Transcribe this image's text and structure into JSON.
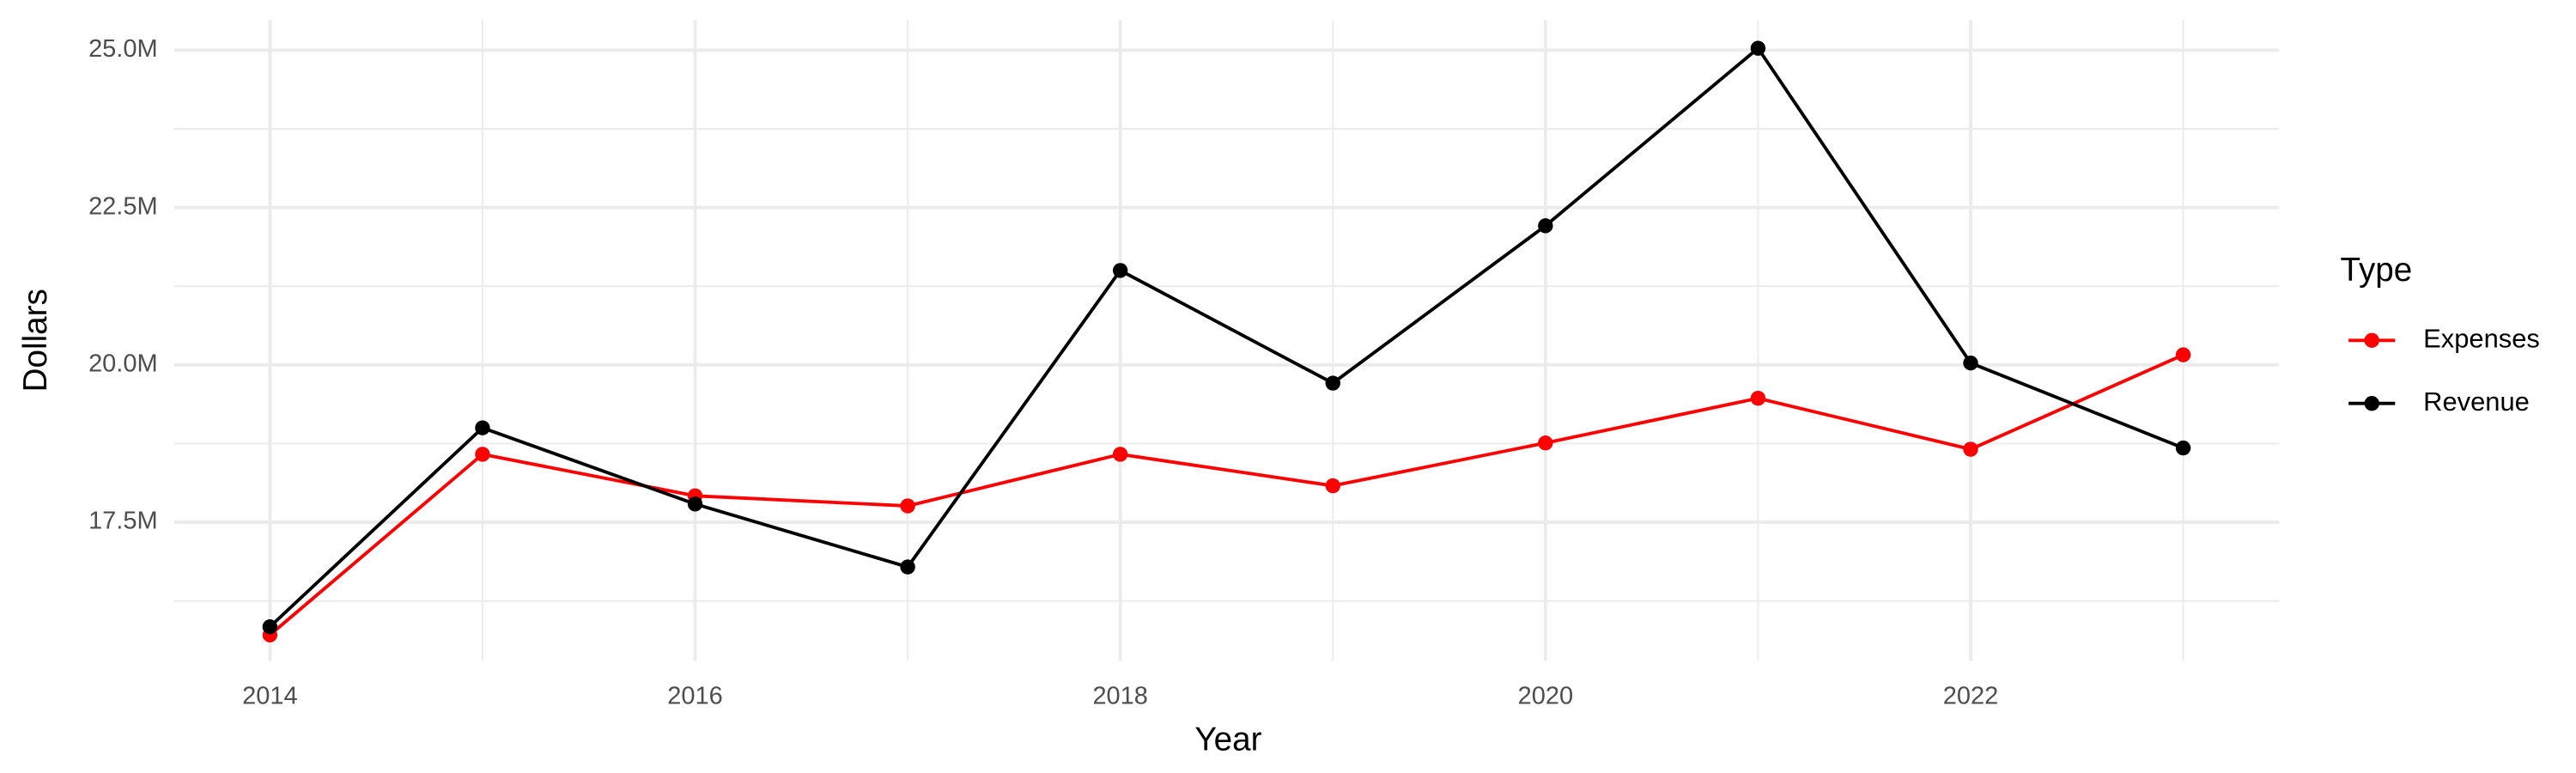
{
  "chart_data": {
    "type": "line",
    "x_label": "Year",
    "y_label": "Dollars",
    "legend_title": "Type",
    "legend_position": "right",
    "x": [
      2014,
      2015,
      2016,
      2017,
      2018,
      2019,
      2020,
      2021,
      2022,
      2023
    ],
    "series": [
      {
        "name": "Expenses",
        "color": "#ff0000",
        "values": [
          15710000,
          18580000,
          17920000,
          17760000,
          18580000,
          18080000,
          18760000,
          19470000,
          18660000,
          20160000
        ]
      },
      {
        "name": "Revenue",
        "color": "#000000",
        "values": [
          15840000,
          19000000,
          17790000,
          16790000,
          21500000,
          19710000,
          22210000,
          25030000,
          20030000,
          18680000
        ]
      }
    ],
    "xlim": [
      2013.55,
      2023.45
    ],
    "xticks": [
      2014,
      2016,
      2018,
      2020,
      2022
    ],
    "ylim": [
      15300000,
      25480000
    ],
    "yticks": [
      {
        "value": 17500000,
        "label": "17.5M"
      },
      {
        "value": 20000000,
        "label": "20.0M"
      },
      {
        "value": 22500000,
        "label": "22.5M"
      },
      {
        "value": 25000000,
        "label": "25.0M"
      }
    ],
    "grid": true,
    "minor_grid": true
  }
}
